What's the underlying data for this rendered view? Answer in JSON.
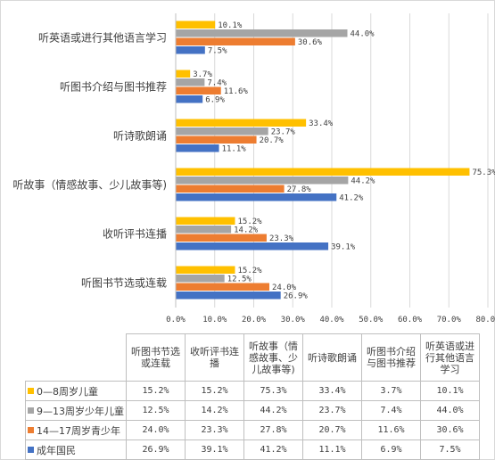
{
  "chart_data": {
    "type": "bar",
    "orientation": "horizontal",
    "categories": [
      "听英语或进行其他语言学习",
      "听图书介绍与图书推荐",
      "听诗歌朗诵",
      "听故事（情感故事、少儿故事等)",
      "收听评书连播",
      "听图书节选或连载"
    ],
    "table_headers": [
      "听图书节选或连载",
      "收听评书连播",
      "听故事（情感故事、少儿故事等)",
      "听诗歌朗诵",
      "听图书介绍与图书推荐",
      "听英语或进行其他语言学习"
    ],
    "series": [
      {
        "name": "0—8周岁儿童",
        "color": "#ffc000",
        "values": [
          10.1,
          3.7,
          33.4,
          75.3,
          15.2,
          15.2
        ],
        "labels": [
          "10.1%",
          "3.7%",
          "33.4%",
          "75.3%",
          "15.2%",
          "15.2%"
        ]
      },
      {
        "name": "9—13周岁少年儿童",
        "color": "#a5a5a5",
        "values": [
          44.0,
          7.4,
          23.7,
          44.2,
          14.2,
          12.5
        ],
        "labels": [
          "44.0%",
          "7.4%",
          "23.7%",
          "44.2%",
          "14.2%",
          "12.5%"
        ]
      },
      {
        "name": "14—17周岁青少年",
        "color": "#ed7d31",
        "values": [
          30.6,
          11.6,
          20.7,
          27.8,
          23.3,
          24.0
        ],
        "labels": [
          "30.6%",
          "11.6%",
          "20.7%",
          "27.8%",
          "23.3%",
          "24.0%"
        ]
      },
      {
        "name": "成年国民",
        "color": "#4472c4",
        "values": [
          7.5,
          6.9,
          11.1,
          41.2,
          39.1,
          26.9
        ],
        "labels": [
          "7.5%",
          "6.9%",
          "11.1%",
          "41.2%",
          "39.1%",
          "26.9%"
        ]
      }
    ],
    "xlim": [
      0,
      80
    ],
    "x_ticks": [
      "0.0%",
      "10.0%",
      "20.0%",
      "30.0%",
      "40.0%",
      "50.0%",
      "60.0%",
      "70.0%",
      "80.0%"
    ],
    "grid": true,
    "legend": "data-table",
    "title": "",
    "xlabel": "",
    "ylabel": ""
  }
}
